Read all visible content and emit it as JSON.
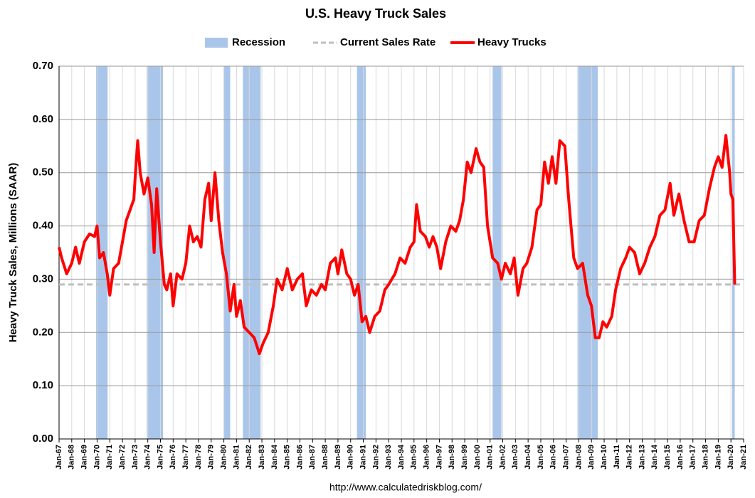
{
  "chart_data": {
    "type": "line",
    "title": "U.S. Heavy Truck Sales",
    "y_label": "Heavy Truck Sales, Millions (SAAR)",
    "source": "http://www.calculatedriskblog.com/",
    "xlim": [
      1967,
      2021
    ],
    "xticks": [
      {
        "value": 1967,
        "label": "Jan-67"
      },
      {
        "value": 1968,
        "label": "Jan-68"
      },
      {
        "value": 1969,
        "label": "Jan-69"
      },
      {
        "value": 1970,
        "label": "Jan-70"
      },
      {
        "value": 1971,
        "label": "Jan-71"
      },
      {
        "value": 1972,
        "label": "Jan-72"
      },
      {
        "value": 1973,
        "label": "Jan-73"
      },
      {
        "value": 1974,
        "label": "Jan-74"
      },
      {
        "value": 1975,
        "label": "Jan-75"
      },
      {
        "value": 1976,
        "label": "Jan-76"
      },
      {
        "value": 1977,
        "label": "Jan-77"
      },
      {
        "value": 1978,
        "label": "Jan-78"
      },
      {
        "value": 1979,
        "label": "Jan-79"
      },
      {
        "value": 1980,
        "label": "Jan-80"
      },
      {
        "value": 1981,
        "label": "Jan-81"
      },
      {
        "value": 1982,
        "label": "Jan-82"
      },
      {
        "value": 1983,
        "label": "Jan-83"
      },
      {
        "value": 1984,
        "label": "Jan-84"
      },
      {
        "value": 1985,
        "label": "Jan-85"
      },
      {
        "value": 1986,
        "label": "Jan-86"
      },
      {
        "value": 1987,
        "label": "Jan-87"
      },
      {
        "value": 1988,
        "label": "Jan-88"
      },
      {
        "value": 1989,
        "label": "Jan-89"
      },
      {
        "value": 1990,
        "label": "Jan-90"
      },
      {
        "value": 1991,
        "label": "Jan-91"
      },
      {
        "value": 1992,
        "label": "Jan-92"
      },
      {
        "value": 1993,
        "label": "Jan-93"
      },
      {
        "value": 1994,
        "label": "Jan-94"
      },
      {
        "value": 1995,
        "label": "Jan-95"
      },
      {
        "value": 1996,
        "label": "Jan-96"
      },
      {
        "value": 1997,
        "label": "Jan-97"
      },
      {
        "value": 1998,
        "label": "Jan-98"
      },
      {
        "value": 1999,
        "label": "Jan-99"
      },
      {
        "value": 2000,
        "label": "Jan-00"
      },
      {
        "value": 2001,
        "label": "Jan-01"
      },
      {
        "value": 2002,
        "label": "Jan-02"
      },
      {
        "value": 2003,
        "label": "Jan-03"
      },
      {
        "value": 2004,
        "label": "Jan-04"
      },
      {
        "value": 2005,
        "label": "Jan-05"
      },
      {
        "value": 2006,
        "label": "Jan-06"
      },
      {
        "value": 2007,
        "label": "Jan-07"
      },
      {
        "value": 2008,
        "label": "Jan-08"
      },
      {
        "value": 2009,
        "label": "Jan-09"
      },
      {
        "value": 2010,
        "label": "Jan-10"
      },
      {
        "value": 2011,
        "label": "Jan-11"
      },
      {
        "value": 2012,
        "label": "Jan-12"
      },
      {
        "value": 2013,
        "label": "Jan-13"
      },
      {
        "value": 2014,
        "label": "Jan-14"
      },
      {
        "value": 2015,
        "label": "Jan-15"
      },
      {
        "value": 2016,
        "label": "Jan-16"
      },
      {
        "value": 2017,
        "label": "Jan-17"
      },
      {
        "value": 2018,
        "label": "Jan-18"
      },
      {
        "value": 2019,
        "label": "Jan-19"
      },
      {
        "value": 2020,
        "label": "Jan-20"
      },
      {
        "value": 2021,
        "label": "Jan-21"
      }
    ],
    "ylim": [
      0,
      0.7
    ],
    "yticks": [
      {
        "value": 0,
        "label": "0.00"
      },
      {
        "value": 0.1,
        "label": "0.10"
      },
      {
        "value": 0.2,
        "label": "0.20"
      },
      {
        "value": 0.3,
        "label": "0.30"
      },
      {
        "value": 0.4,
        "label": "0.40"
      },
      {
        "value": 0.5,
        "label": "0.50"
      },
      {
        "value": 0.6,
        "label": "0.60"
      },
      {
        "value": 0.7,
        "label": "0.70"
      }
    ],
    "grid": true,
    "x": [
      1967.0,
      1967.2,
      1967.6,
      1968.0,
      1968.3,
      1968.6,
      1969.0,
      1969.4,
      1969.8,
      1970.0,
      1970.2,
      1970.5,
      1970.8,
      1971.0,
      1971.3,
      1971.7,
      1972.0,
      1972.3,
      1972.6,
      1972.9,
      1973.0,
      1973.2,
      1973.4,
      1973.7,
      1974.0,
      1974.3,
      1974.5,
      1974.7,
      1975.0,
      1975.3,
      1975.5,
      1975.8,
      1976.0,
      1976.3,
      1976.7,
      1977.0,
      1977.3,
      1977.6,
      1977.9,
      1978.2,
      1978.5,
      1978.8,
      1979.0,
      1979.3,
      1979.6,
      1979.9,
      1980.2,
      1980.5,
      1980.8,
      1981.0,
      1981.3,
      1981.6,
      1982.0,
      1982.4,
      1982.8,
      1983.1,
      1983.5,
      1983.9,
      1984.2,
      1984.6,
      1985.0,
      1985.4,
      1985.8,
      1986.2,
      1986.5,
      1986.9,
      1987.3,
      1987.7,
      1988.0,
      1988.4,
      1988.8,
      1989.0,
      1989.3,
      1989.7,
      1990.0,
      1990.3,
      1990.6,
      1990.9,
      1991.2,
      1991.5,
      1991.9,
      1992.3,
      1992.7,
      1993.0,
      1993.5,
      1993.9,
      1994.3,
      1994.7,
      1995.0,
      1995.2,
      1995.5,
      1995.9,
      1996.2,
      1996.5,
      1996.8,
      1997.1,
      1997.5,
      1997.9,
      1998.3,
      1998.6,
      1998.9,
      1999.2,
      1999.5,
      1999.9,
      2000.2,
      2000.5,
      2000.8,
      2001.2,
      2001.6,
      2001.9,
      2002.2,
      2002.6,
      2002.9,
      2003.2,
      2003.6,
      2003.9,
      2004.3,
      2004.7,
      2005.0,
      2005.3,
      2005.6,
      2005.9,
      2006.2,
      2006.5,
      2006.9,
      2007.2,
      2007.6,
      2007.9,
      2008.3,
      2008.7,
      2009.0,
      2009.3,
      2009.6,
      2009.9,
      2010.2,
      2010.6,
      2010.9,
      2011.3,
      2011.7,
      2012.0,
      2012.4,
      2012.8,
      2013.2,
      2013.6,
      2014.0,
      2014.4,
      2014.8,
      2015.2,
      2015.5,
      2015.9,
      2016.3,
      2016.7,
      2017.1,
      2017.5,
      2017.9,
      2018.3,
      2018.7,
      2019.0,
      2019.3,
      2019.6,
      2019.9,
      2020.0,
      2020.15,
      2020.3
    ],
    "series": [
      {
        "name": "Recession",
        "color": "#a9c6ea",
        "ranges": [
          [
            1969.92,
            1970.83
          ],
          [
            1973.92,
            1975.2
          ],
          [
            1980.0,
            1980.5
          ],
          [
            1981.5,
            1982.9
          ],
          [
            1990.5,
            1991.2
          ],
          [
            2001.2,
            2001.9
          ],
          [
            2007.9,
            2009.5
          ],
          [
            2020.1,
            2020.3
          ]
        ]
      },
      {
        "name": "Current Sales Rate",
        "color": "#bfbfbf",
        "value": 0.29,
        "dashed": true
      },
      {
        "name": "Heavy Trucks",
        "color": "#ff0000",
        "values": [
          0.36,
          0.34,
          0.31,
          0.33,
          0.36,
          0.33,
          0.37,
          0.385,
          0.38,
          0.4,
          0.34,
          0.35,
          0.31,
          0.27,
          0.32,
          0.33,
          0.37,
          0.41,
          0.43,
          0.45,
          0.49,
          0.56,
          0.5,
          0.46,
          0.49,
          0.44,
          0.35,
          0.47,
          0.37,
          0.29,
          0.28,
          0.31,
          0.25,
          0.31,
          0.3,
          0.33,
          0.4,
          0.37,
          0.38,
          0.36,
          0.45,
          0.48,
          0.41,
          0.5,
          0.41,
          0.35,
          0.31,
          0.24,
          0.29,
          0.23,
          0.26,
          0.21,
          0.2,
          0.19,
          0.16,
          0.18,
          0.2,
          0.25,
          0.3,
          0.28,
          0.32,
          0.28,
          0.3,
          0.31,
          0.25,
          0.28,
          0.27,
          0.29,
          0.28,
          0.33,
          0.34,
          0.31,
          0.355,
          0.31,
          0.3,
          0.27,
          0.29,
          0.22,
          0.23,
          0.2,
          0.23,
          0.24,
          0.28,
          0.29,
          0.31,
          0.34,
          0.33,
          0.36,
          0.37,
          0.44,
          0.39,
          0.38,
          0.36,
          0.38,
          0.36,
          0.32,
          0.37,
          0.4,
          0.39,
          0.41,
          0.45,
          0.52,
          0.5,
          0.545,
          0.52,
          0.51,
          0.4,
          0.34,
          0.33,
          0.3,
          0.33,
          0.31,
          0.34,
          0.27,
          0.32,
          0.33,
          0.36,
          0.43,
          0.44,
          0.52,
          0.48,
          0.53,
          0.48,
          0.56,
          0.55,
          0.45,
          0.34,
          0.32,
          0.33,
          0.27,
          0.25,
          0.19,
          0.19,
          0.22,
          0.21,
          0.23,
          0.28,
          0.32,
          0.34,
          0.36,
          0.35,
          0.31,
          0.33,
          0.36,
          0.38,
          0.42,
          0.43,
          0.48,
          0.42,
          0.46,
          0.41,
          0.37,
          0.37,
          0.41,
          0.42,
          0.47,
          0.51,
          0.53,
          0.51,
          0.57,
          0.5,
          0.46,
          0.45,
          0.29
        ]
      }
    ]
  }
}
